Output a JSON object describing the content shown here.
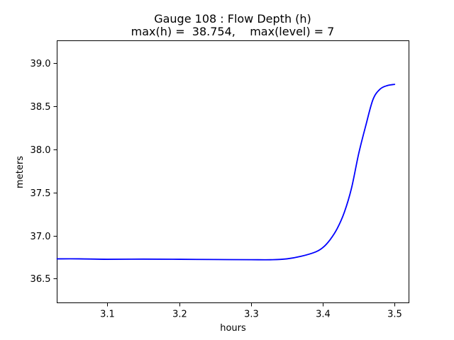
{
  "chart_data": {
    "type": "line",
    "title": "Gauge 108 : Flow Depth (h)",
    "subtitle": "max(h) =  38.754,    max(level) = 7",
    "xlabel": "hours",
    "ylabel": "meters",
    "xlim": [
      3.03,
      3.52
    ],
    "ylim": [
      36.22,
      39.26
    ],
    "xticks": [
      3.1,
      3.2,
      3.3,
      3.4,
      3.5
    ],
    "xtick_labels": [
      "3.1",
      "3.2",
      "3.3",
      "3.4",
      "3.5"
    ],
    "yticks": [
      36.5,
      37.0,
      37.5,
      38.0,
      38.5,
      39.0
    ],
    "ytick_labels": [
      "36.5",
      "37.0",
      "37.5",
      "38.0",
      "38.5",
      "39.0"
    ],
    "grid": false,
    "series": [
      {
        "color": "#0000ff",
        "x": [
          3.03,
          3.06,
          3.1,
          3.15,
          3.2,
          3.25,
          3.3,
          3.33,
          3.35,
          3.37,
          3.39,
          3.4,
          3.41,
          3.42,
          3.43,
          3.44,
          3.45,
          3.46,
          3.47,
          3.48,
          3.49,
          3.5
        ],
        "y": [
          36.73,
          36.73,
          36.725,
          36.727,
          36.725,
          36.722,
          36.72,
          36.72,
          36.73,
          36.76,
          36.81,
          36.86,
          36.95,
          37.08,
          37.27,
          37.55,
          37.95,
          38.28,
          38.58,
          38.7,
          38.74,
          38.754
        ]
      }
    ]
  }
}
